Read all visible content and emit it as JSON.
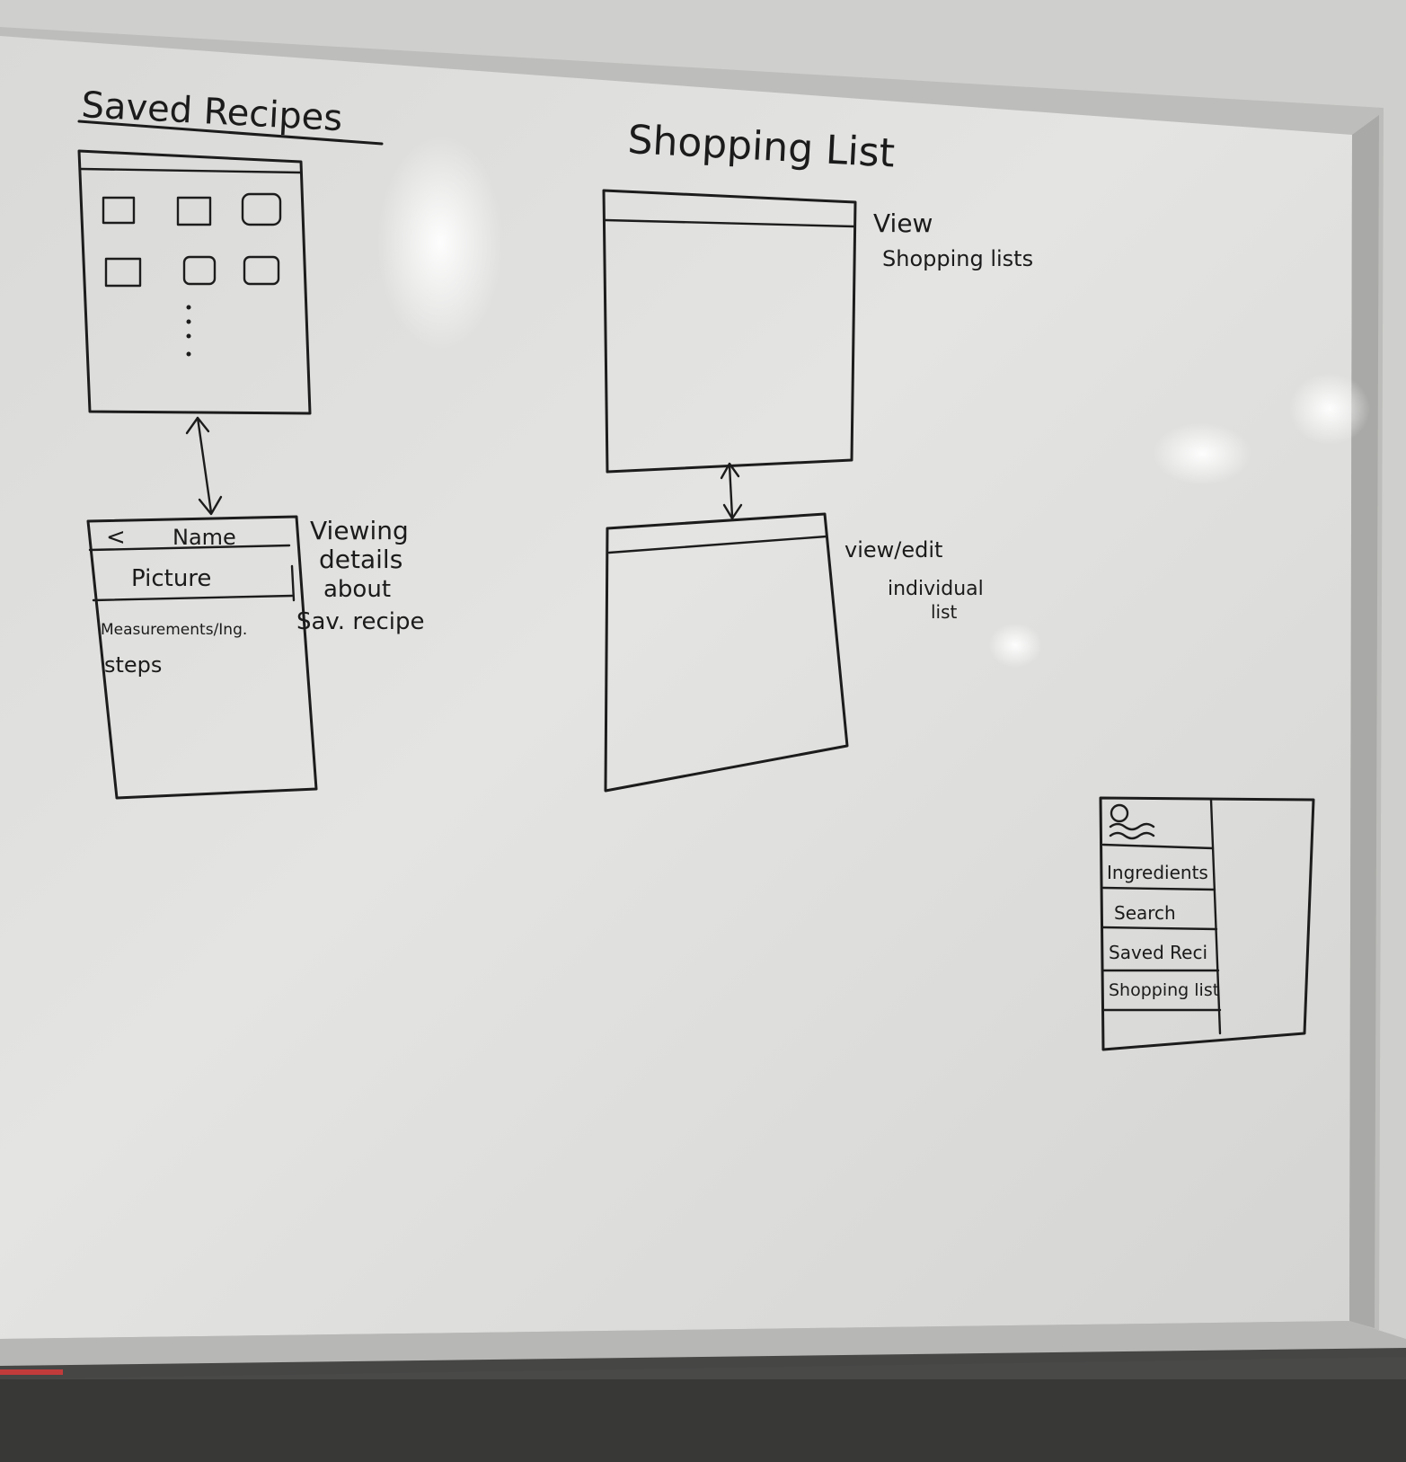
{
  "saved_recipes": {
    "heading": "Saved Recipes",
    "detail": {
      "back": "<",
      "name": "Name",
      "picture": "Picture",
      "measurements": "Measurements/Ing.",
      "steps": "steps"
    },
    "note": [
      "Viewing",
      "details",
      "about",
      "Sav. recipe"
    ]
  },
  "shopping_list": {
    "heading": "Shopping List",
    "note_top": [
      "View",
      "Shopping lists"
    ],
    "note_bottom": [
      "view/edit",
      "individual",
      "list"
    ]
  },
  "nav_menu": {
    "items": [
      "Ingredients",
      "Search",
      "Saved Reci",
      "Shopping list"
    ]
  }
}
